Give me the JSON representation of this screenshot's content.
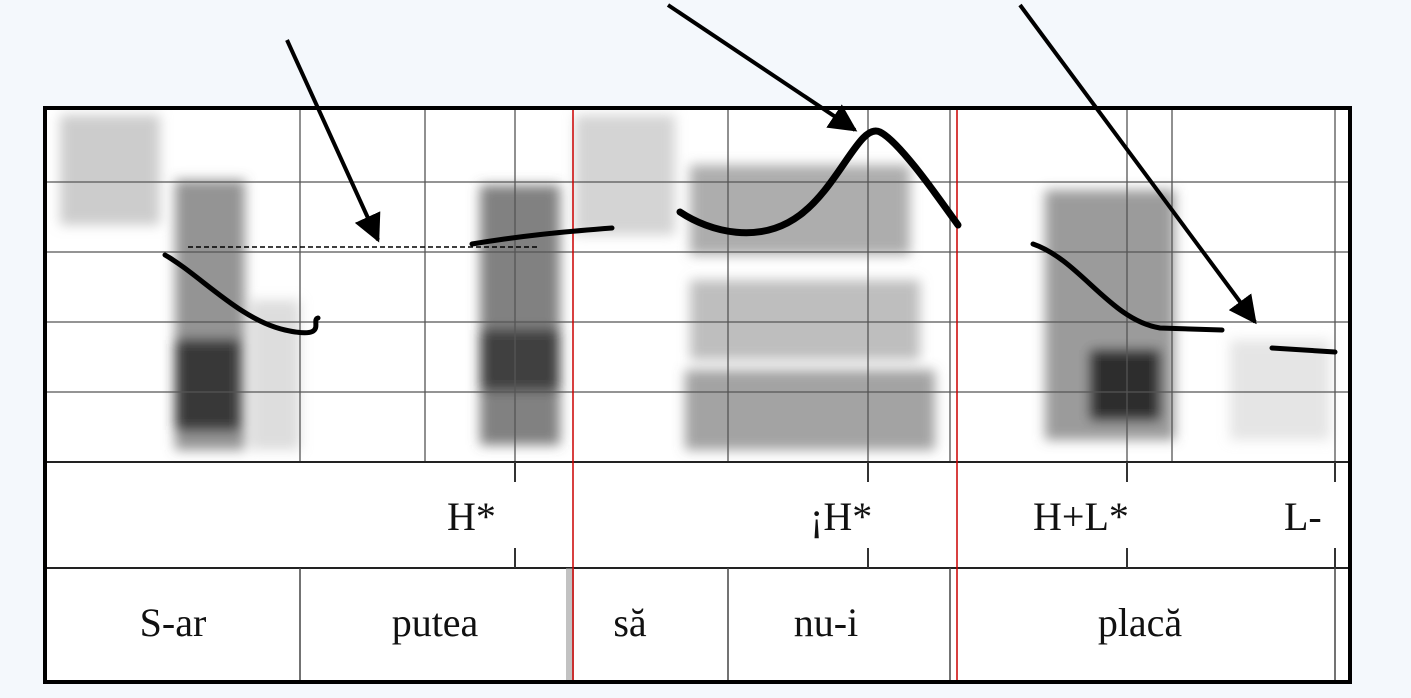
{
  "tones": [
    "H*",
    "¡H*",
    "H+L*",
    "L-"
  ],
  "words": [
    "S-ar",
    "putea",
    "să",
    "nu-i",
    "placă"
  ]
}
